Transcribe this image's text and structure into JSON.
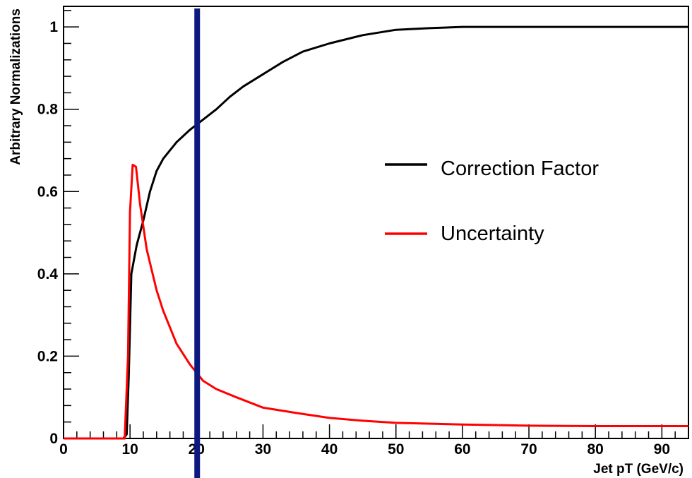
{
  "chart_data": {
    "type": "line",
    "title": "",
    "xlabel": "Jet pT (GeV/c)",
    "ylabel": "Arbitrary Normalizations",
    "xlim": [
      0,
      94
    ],
    "ylim": [
      0,
      1.05
    ],
    "xticks": [
      0,
      10,
      20,
      30,
      40,
      50,
      60,
      70,
      80,
      90
    ],
    "yticks": [
      0,
      0.2,
      0.4,
      0.6,
      0.8,
      1
    ],
    "ytick_labels": [
      "0",
      "0.2",
      "0.4",
      "0.6",
      "0.8",
      "1"
    ],
    "grid": false,
    "legend_position": "right-middle",
    "series": [
      {
        "name": "Correction Factor",
        "color": "#000000",
        "points": [
          [
            0,
            0
          ],
          [
            9,
            0
          ],
          [
            9.5,
            0.01
          ],
          [
            9.8,
            0.15
          ],
          [
            10.2,
            0.4
          ],
          [
            11,
            0.47
          ],
          [
            12,
            0.53
          ],
          [
            13,
            0.6
          ],
          [
            14,
            0.65
          ],
          [
            15,
            0.68
          ],
          [
            17,
            0.72
          ],
          [
            19,
            0.75
          ],
          [
            21,
            0.775
          ],
          [
            23,
            0.8
          ],
          [
            25,
            0.83
          ],
          [
            27,
            0.855
          ],
          [
            30,
            0.885
          ],
          [
            33,
            0.915
          ],
          [
            36,
            0.94
          ],
          [
            40,
            0.96
          ],
          [
            45,
            0.98
          ],
          [
            50,
            0.993
          ],
          [
            55,
            0.997
          ],
          [
            60,
            1.0
          ],
          [
            70,
            1.0
          ],
          [
            80,
            1.0
          ],
          [
            94,
            1.0
          ]
        ]
      },
      {
        "name": "Uncertainty",
        "color": "#ff0000",
        "points": [
          [
            0,
            0
          ],
          [
            9.2,
            0
          ],
          [
            9.7,
            0.2
          ],
          [
            10,
            0.55
          ],
          [
            10.4,
            0.665
          ],
          [
            10.9,
            0.66
          ],
          [
            11.5,
            0.57
          ],
          [
            12.5,
            0.46
          ],
          [
            14,
            0.36
          ],
          [
            15,
            0.31
          ],
          [
            17,
            0.23
          ],
          [
            19,
            0.18
          ],
          [
            21,
            0.14
          ],
          [
            23,
            0.12
          ],
          [
            26,
            0.1
          ],
          [
            30,
            0.075
          ],
          [
            35,
            0.062
          ],
          [
            40,
            0.05
          ],
          [
            45,
            0.043
          ],
          [
            50,
            0.038
          ],
          [
            60,
            0.034
          ],
          [
            70,
            0.031
          ],
          [
            80,
            0.03
          ],
          [
            94,
            0.03
          ]
        ]
      }
    ],
    "marker": {
      "name": "vertical-line",
      "x": 20.1,
      "color": "#0c1a80"
    }
  }
}
